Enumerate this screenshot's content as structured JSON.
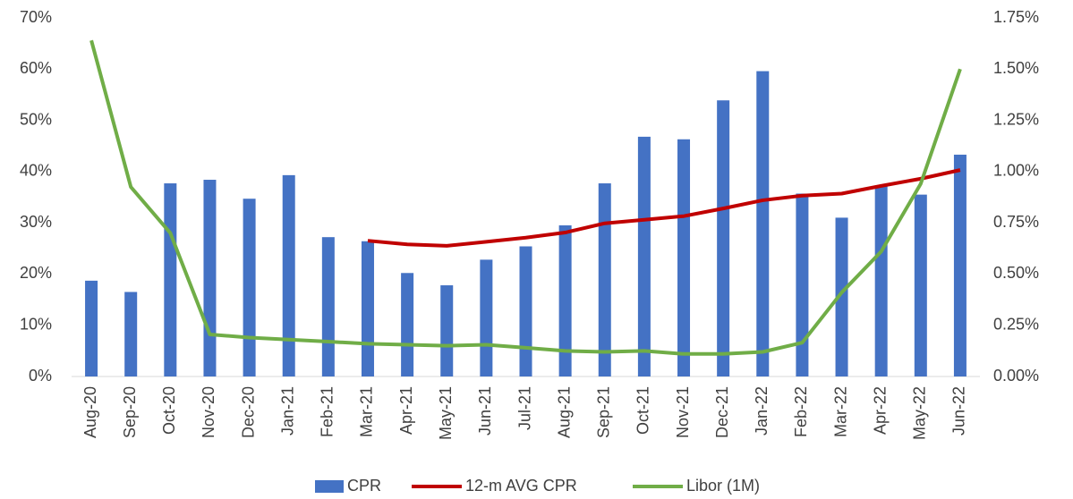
{
  "chart_data": {
    "type": "bar-line",
    "categories": [
      "Aug-20",
      "Sep-20",
      "Oct-20",
      "Nov-20",
      "Dec-20",
      "Jan-21",
      "Feb-21",
      "Mar-21",
      "Apr-21",
      "May-21",
      "Jun-21",
      "Jul-21",
      "Aug-21",
      "Sep-21",
      "Oct-21",
      "Nov-21",
      "Dec-21",
      "Jan-22",
      "Feb-22",
      "Mar-22",
      "Apr-22",
      "May-22",
      "Jun-22"
    ],
    "series": [
      {
        "name": "CPR",
        "type": "bar",
        "color": "#4472c4",
        "values": [
          18.7,
          16.5,
          37.7,
          38.4,
          34.7,
          39.3,
          27.2,
          26.4,
          20.2,
          17.8,
          22.8,
          25.4,
          29.5,
          37.7,
          46.8,
          46.3,
          53.9,
          59.6,
          35.7,
          31.0,
          37.3,
          35.5,
          43.3
        ]
      },
      {
        "name": "12-m AVG CPR",
        "type": "line",
        "color": "#c00000",
        "values": [
          null,
          null,
          null,
          null,
          null,
          null,
          null,
          26.5,
          25.8,
          25.5,
          26.3,
          27.1,
          28.1,
          29.9,
          30.6,
          31.3,
          32.8,
          34.4,
          35.3,
          35.7,
          37.2,
          38.6,
          40.3
        ]
      },
      {
        "name": "Libor (1M)",
        "type": "line",
        "axis": "y2",
        "color": "#70ad47",
        "values": [
          1.64,
          0.925,
          0.7,
          0.205,
          0.19,
          0.18,
          0.17,
          0.16,
          0.155,
          0.15,
          0.155,
          0.14,
          0.125,
          0.12,
          0.125,
          0.11,
          0.11,
          0.12,
          0.165,
          0.41,
          0.61,
          0.94,
          1.5
        ]
      }
    ],
    "ylim": [
      0,
      70
    ],
    "yticks": [
      {
        "value": 0,
        "label": "0%"
      },
      {
        "value": 10,
        "label": "10%"
      },
      {
        "value": 20,
        "label": "20%"
      },
      {
        "value": 30,
        "label": "30%"
      },
      {
        "value": 40,
        "label": "40%"
      },
      {
        "value": 50,
        "label": "50%"
      },
      {
        "value": 60,
        "label": "60%"
      },
      {
        "value": 70,
        "label": "70%"
      }
    ],
    "y2lim": [
      0,
      1.75
    ],
    "y2ticks": [
      {
        "value": 0,
        "label": "0.00%"
      },
      {
        "value": 0.25,
        "label": "0.25%"
      },
      {
        "value": 0.5,
        "label": "0.50%"
      },
      {
        "value": 0.75,
        "label": "0.75%"
      },
      {
        "value": 1,
        "label": "1.00%"
      },
      {
        "value": 1.25,
        "label": "1.25%"
      },
      {
        "value": 1.5,
        "label": "1.50%"
      },
      {
        "value": 1.75,
        "label": "1.75%"
      }
    ],
    "grid": false,
    "legend": "bottom"
  }
}
